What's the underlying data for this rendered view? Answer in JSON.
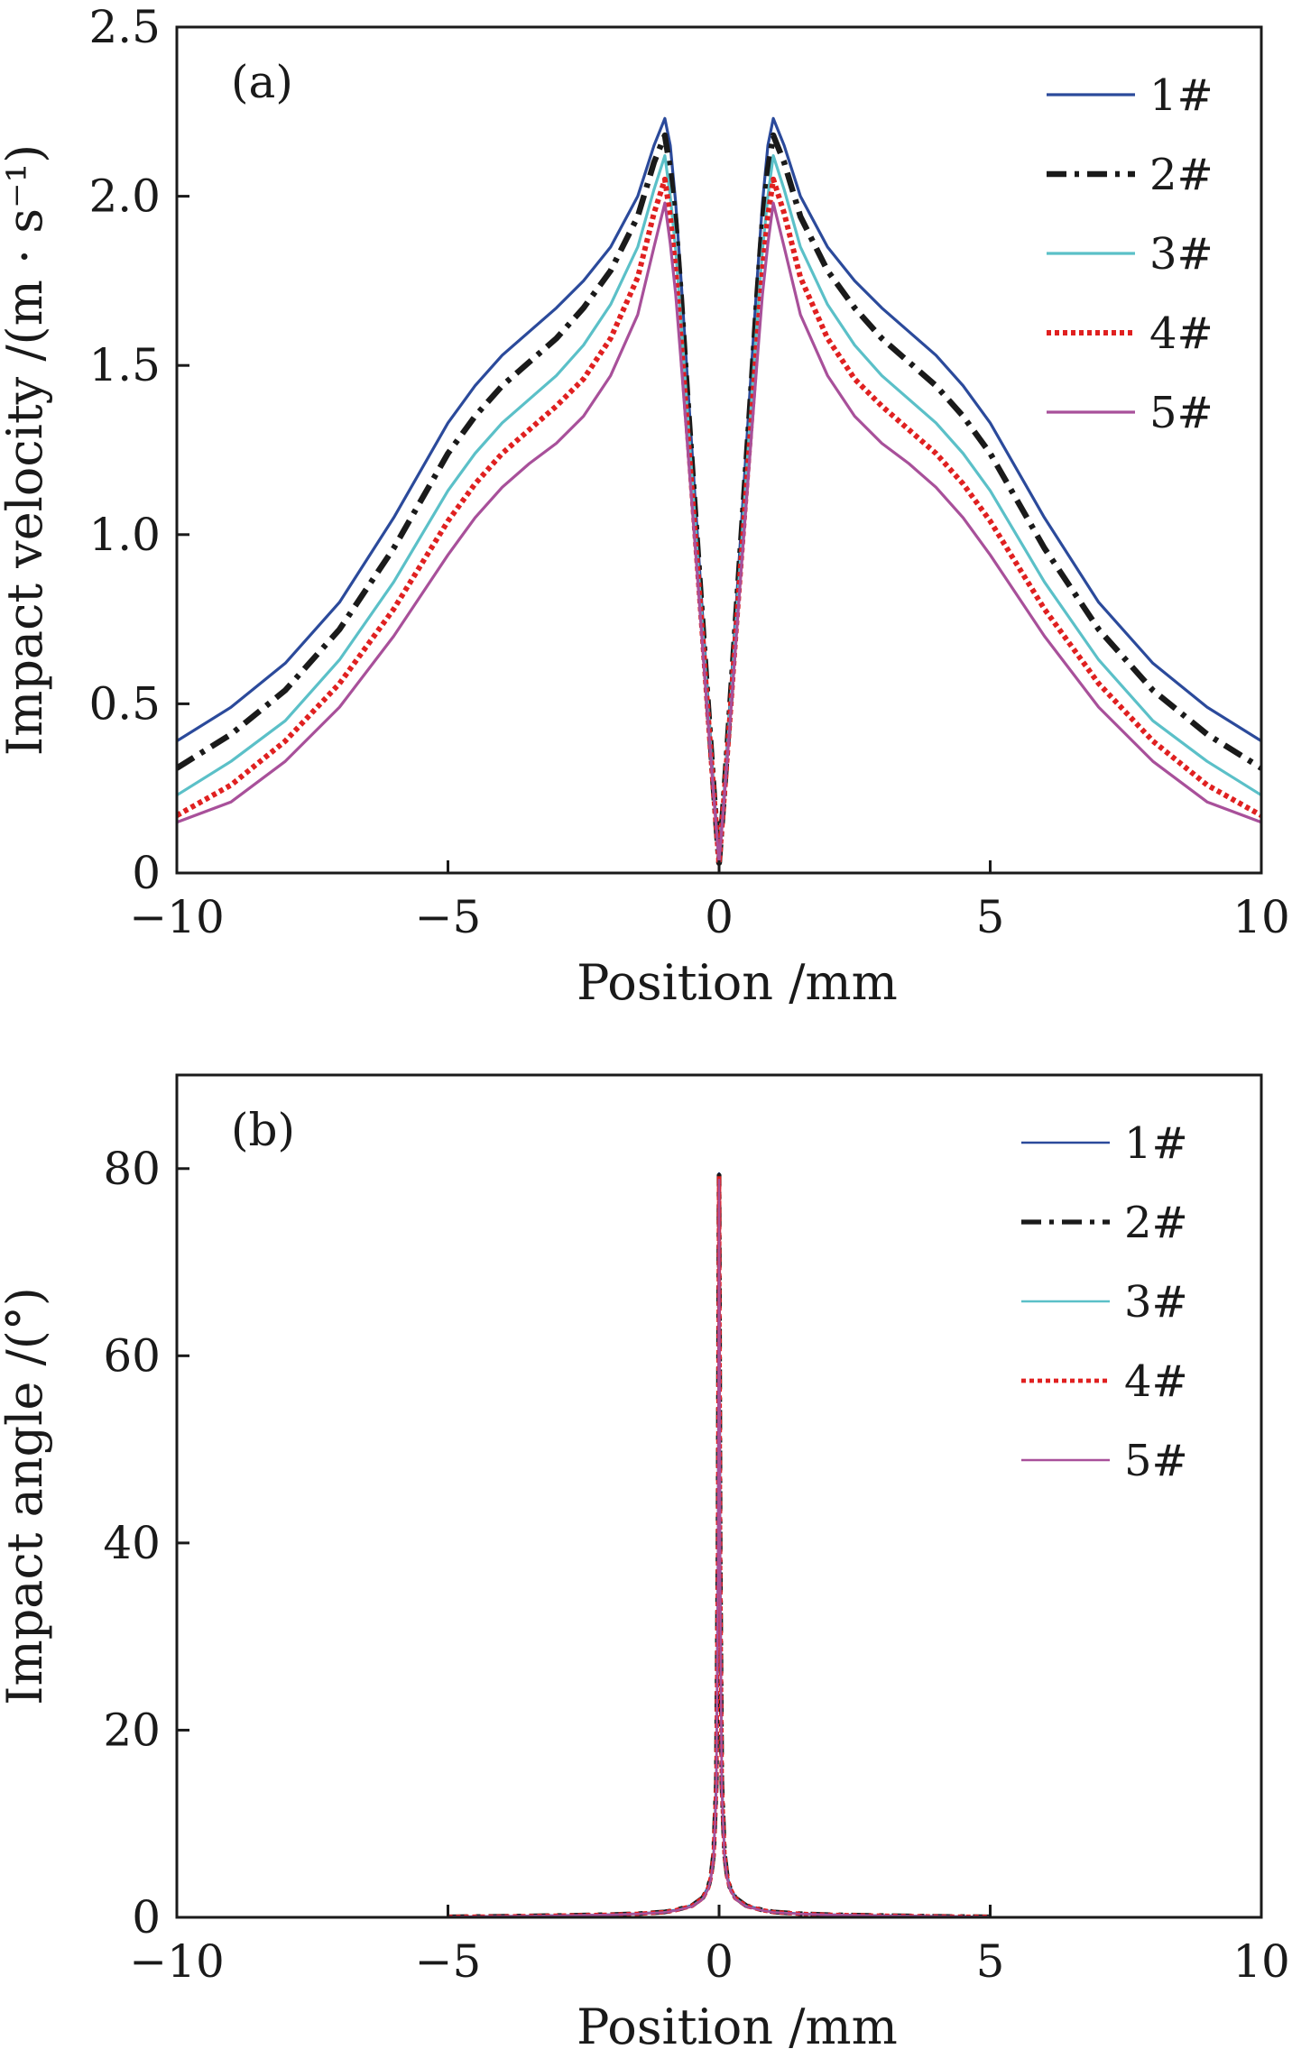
{
  "chart_data": [
    {
      "type": "line",
      "panel_label": "(a)",
      "xlabel": "Position /mm",
      "ylabel": "Impact velocity /(m · s⁻¹)",
      "xlim": [
        -10,
        10
      ],
      "ylim": [
        0,
        2.5
      ],
      "xticks": [
        -10,
        -5,
        0,
        5,
        10
      ],
      "xtick_labels": [
        "−10",
        "−5",
        "0",
        "5",
        "10"
      ],
      "yticks": [
        0,
        0.5,
        1.0,
        1.5,
        2.0,
        2.5
      ],
      "ytick_labels": [
        "0",
        "0.5",
        "1.0",
        "1.5",
        "2.0",
        "2.5"
      ],
      "grid": false,
      "legend_position": "top-right",
      "x": [
        0,
        0.1,
        0.2,
        0.3,
        0.4,
        0.5,
        0.6,
        0.7,
        0.8,
        0.9,
        1.0,
        1.2,
        1.5,
        2.0,
        2.5,
        3.0,
        3.5,
        4.0,
        4.5,
        5.0,
        6.0,
        7.0,
        8.0,
        9.0,
        10.0
      ],
      "symmetric_about_zero": true,
      "series": [
        {
          "name": "1#",
          "color": "#2b4a9b",
          "dash": "solid",
          "values": [
            0.03,
            0.25,
            0.5,
            0.75,
            1.0,
            1.25,
            1.5,
            1.75,
            1.98,
            2.15,
            2.23,
            2.15,
            2.0,
            1.85,
            1.75,
            1.67,
            1.6,
            1.53,
            1.44,
            1.33,
            1.05,
            0.8,
            0.62,
            0.49,
            0.39
          ]
        },
        {
          "name": "2#",
          "color": "#1a1a1a",
          "dash": "dashdot",
          "values": [
            0.03,
            0.25,
            0.49,
            0.73,
            0.97,
            1.21,
            1.45,
            1.7,
            1.92,
            2.08,
            2.18,
            2.1,
            1.94,
            1.78,
            1.67,
            1.58,
            1.51,
            1.44,
            1.35,
            1.24,
            0.96,
            0.72,
            0.54,
            0.41,
            0.31
          ]
        },
        {
          "name": "3#",
          "color": "#5bc0c8",
          "dash": "solid",
          "values": [
            0.03,
            0.24,
            0.48,
            0.71,
            0.94,
            1.17,
            1.4,
            1.63,
            1.84,
            2.0,
            2.12,
            2.02,
            1.85,
            1.68,
            1.56,
            1.47,
            1.4,
            1.33,
            1.24,
            1.13,
            0.86,
            0.63,
            0.45,
            0.33,
            0.23
          ]
        },
        {
          "name": "4#",
          "color": "#e02020",
          "dash": "dotted",
          "values": [
            0.03,
            0.24,
            0.46,
            0.69,
            0.91,
            1.13,
            1.35,
            1.57,
            1.78,
            1.94,
            2.05,
            1.95,
            1.76,
            1.58,
            1.46,
            1.38,
            1.31,
            1.24,
            1.15,
            1.04,
            0.78,
            0.56,
            0.39,
            0.26,
            0.17
          ]
        },
        {
          "name": "5#",
          "color": "#a8509a",
          "dash": "solid",
          "values": [
            0.03,
            0.23,
            0.44,
            0.66,
            0.88,
            1.09,
            1.3,
            1.51,
            1.71,
            1.86,
            1.98,
            1.85,
            1.65,
            1.47,
            1.35,
            1.27,
            1.21,
            1.14,
            1.05,
            0.94,
            0.7,
            0.49,
            0.33,
            0.21,
            0.15
          ]
        }
      ]
    },
    {
      "type": "line",
      "panel_label": "(b)",
      "xlabel": "Position /mm",
      "ylabel": "Impact angle /(°)",
      "xlim": [
        -10,
        10
      ],
      "ylim": [
        0,
        90
      ],
      "xticks": [
        -10,
        -5,
        0,
        5,
        10
      ],
      "xtick_labels": [
        "−10",
        "−5",
        "0",
        "5",
        "10"
      ],
      "yticks": [
        0,
        20,
        40,
        60,
        80
      ],
      "ytick_labels": [
        "0",
        "20",
        "40",
        "60",
        "80"
      ],
      "grid": false,
      "legend_position": "top-right",
      "x": [
        0,
        0.02,
        0.05,
        0.1,
        0.15,
        0.2,
        0.3,
        0.5,
        0.8,
        1.0,
        1.5,
        2.0,
        3.0,
        4.0,
        5.0
      ],
      "symmetric_about_zero": true,
      "series": [
        {
          "name": "1#",
          "color": "#2b4a9b",
          "dash": "solid",
          "values": [
            79.5,
            40,
            15,
            7,
            4.5,
            3.3,
            2.2,
            1.3,
            0.8,
            0.6,
            0.4,
            0.3,
            0.2,
            0.12,
            0.05
          ]
        },
        {
          "name": "2#",
          "color": "#1a1a1a",
          "dash": "dashdot",
          "values": [
            79.3,
            39,
            14.5,
            6.8,
            4.4,
            3.2,
            2.1,
            1.25,
            0.78,
            0.58,
            0.39,
            0.29,
            0.19,
            0.11,
            0.05
          ]
        },
        {
          "name": "3#",
          "color": "#5bc0c8",
          "dash": "solid",
          "values": [
            79.0,
            38,
            14,
            6.6,
            4.2,
            3.1,
            2.0,
            1.2,
            0.75,
            0.55,
            0.37,
            0.28,
            0.18,
            0.1,
            0.05
          ]
        },
        {
          "name": "4#",
          "color": "#e02020",
          "dash": "dotted",
          "values": [
            79.2,
            38.5,
            14.2,
            6.7,
            4.3,
            3.15,
            2.05,
            1.22,
            0.76,
            0.56,
            0.38,
            0.28,
            0.18,
            0.1,
            0.05
          ]
        },
        {
          "name": "5#",
          "color": "#a8509a",
          "dash": "solid",
          "values": [
            78.8,
            37,
            13.5,
            6.4,
            4.1,
            3.0,
            1.95,
            1.15,
            0.72,
            0.53,
            0.36,
            0.27,
            0.17,
            0.1,
            0.05
          ]
        }
      ]
    }
  ]
}
